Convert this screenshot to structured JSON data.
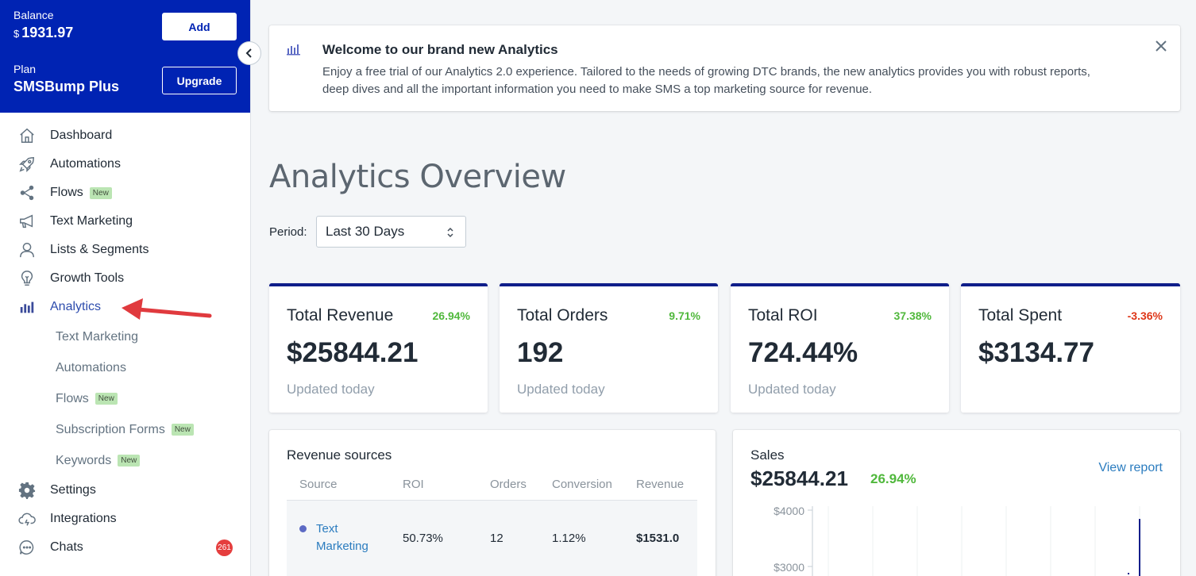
{
  "account": {
    "balance_label": "Balance",
    "currency": "$",
    "balance_value": "1931.97",
    "add_label": "Add",
    "plan_label": "Plan",
    "plan_value": "SMSBump Plus",
    "upgrade_label": "Upgrade"
  },
  "nav": {
    "dashboard": "Dashboard",
    "automations": "Automations",
    "flows": "Flows",
    "text_marketing": "Text Marketing",
    "lists_segments": "Lists & Segments",
    "growth_tools": "Growth Tools",
    "analytics": "Analytics",
    "settings": "Settings",
    "integrations": "Integrations",
    "chats": "Chats",
    "chats_count": "261",
    "new_badge": "New",
    "analytics_sub": {
      "text_marketing": "Text Marketing",
      "automations": "Automations",
      "flows": "Flows",
      "subscription_forms": "Subscription Forms",
      "keywords": "Keywords"
    }
  },
  "welcome": {
    "title": "Welcome to our brand new Analytics",
    "description": "Enjoy a free trial of our Analytics 2.0 experience. Tailored to the needs of growing DTC brands, the new analytics provides you with robust reports, deep dives and all the important information you need to make SMS a top marketing source for revenue."
  },
  "page": {
    "title": "Analytics Overview",
    "period_label": "Period:",
    "period_value": "Last 30 Days"
  },
  "stats": [
    {
      "title": "Total Revenue",
      "percent": "26.94%",
      "value": "$25844.21",
      "updated": "Updated today"
    },
    {
      "title": "Total Orders",
      "percent": "9.71%",
      "value": "192",
      "updated": "Updated today"
    },
    {
      "title": "Total ROI",
      "percent": "37.38%",
      "value": "724.44%",
      "updated": "Updated today"
    },
    {
      "title": "Total Spent",
      "percent": "-3.36%",
      "value": "$3134.77",
      "updated": ""
    }
  ],
  "revenue_sources": {
    "title": "Revenue sources",
    "columns": [
      "Source",
      "ROI",
      "Orders",
      "Conversion",
      "Revenue"
    ],
    "rows": [
      {
        "source": "Text Marketing",
        "roi": "50.73%",
        "orders": "12",
        "conversion": "1.12%",
        "revenue": "$1531.0"
      }
    ]
  },
  "sales": {
    "title": "Sales",
    "value": "$25844.21",
    "percent": "26.94%",
    "view_report": "View report",
    "y_ticks": [
      "$4000",
      "$3000"
    ]
  },
  "colors": {
    "brand": "#0023b3",
    "positive": "#50b83c",
    "negative": "#de3618",
    "link": "#2b7cbf"
  }
}
